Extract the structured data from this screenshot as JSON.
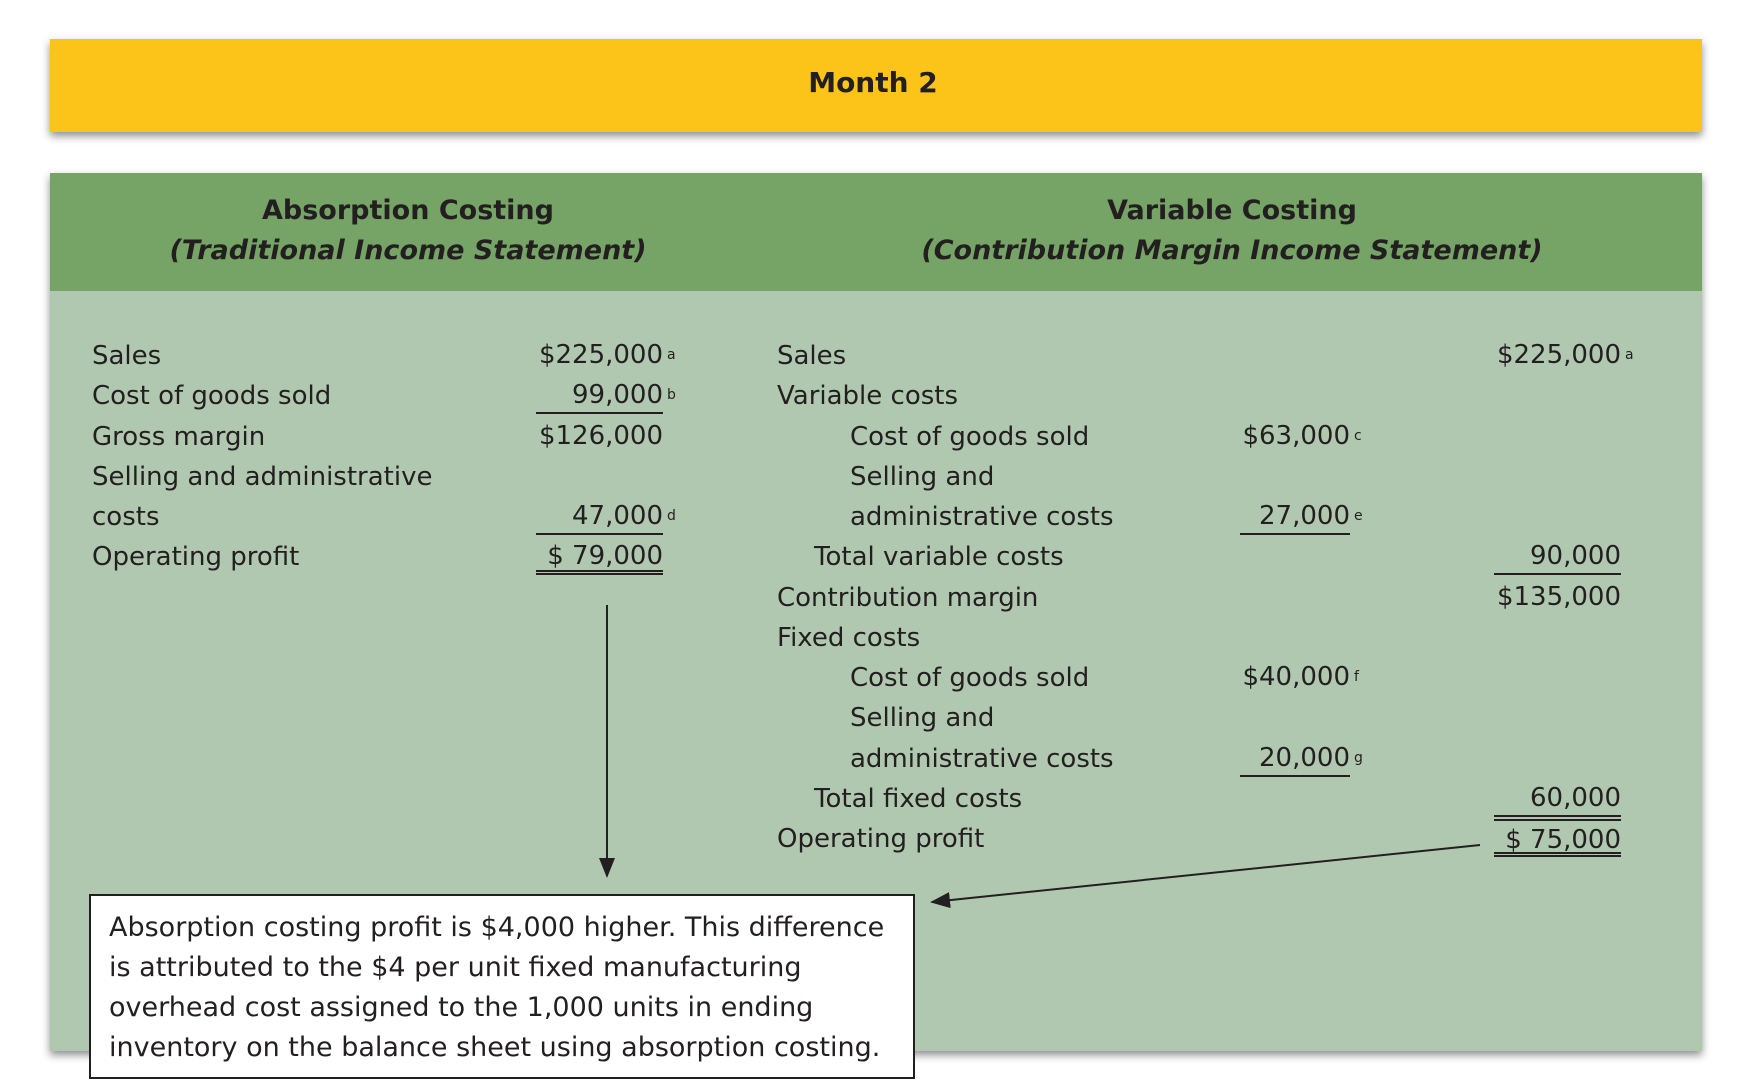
{
  "header": {
    "title": "Month 2"
  },
  "absorption": {
    "title": "Absorption Costing",
    "subtitle": "(Traditional Income Statement)",
    "rows": [
      {
        "label": "Sales",
        "value": "$225,000",
        "note": "a"
      },
      {
        "label": "Cost of goods sold",
        "value": "99,000",
        "note": "b"
      },
      {
        "label": "Gross margin",
        "value": "$126,000"
      },
      {
        "label": "Selling and administrative"
      },
      {
        "label": "costs",
        "value": "47,000",
        "note": "d"
      },
      {
        "label": "Operating profit",
        "value": "$ 79,000"
      }
    ]
  },
  "variable": {
    "title": "Variable Costing",
    "subtitle": "(Contribution Margin Income Statement)",
    "rows": [
      {
        "label": "Sales",
        "total": "$225,000",
        "total_note": "a"
      },
      {
        "label": "Variable costs"
      },
      {
        "label": "Cost of goods sold",
        "mid": "$63,000",
        "mid_note": "c"
      },
      {
        "label": "Selling and"
      },
      {
        "label": "administrative costs",
        "mid": "27,000",
        "mid_note": "e"
      },
      {
        "label": "Total variable costs",
        "total": "90,000"
      },
      {
        "label": "Contribution margin",
        "total": "$135,000"
      },
      {
        "label": "Fixed costs"
      },
      {
        "label": "Cost of goods sold",
        "mid": "$40,000",
        "mid_note": "f"
      },
      {
        "label": "Selling and"
      },
      {
        "label": "administrative costs",
        "mid": "20,000",
        "mid_note": "g"
      },
      {
        "label": "Total fixed costs",
        "total": "60,000"
      },
      {
        "label": "Operating profit",
        "total": "$ 75,000"
      }
    ]
  },
  "note": {
    "lines": [
      "Absorption costing profit is $4,000 higher. This difference",
      "is attributed to the $4 per unit fixed manufacturing",
      "overhead cost assigned to the 1,000 units in ending",
      "inventory on the balance sheet using absorption costing."
    ]
  }
}
